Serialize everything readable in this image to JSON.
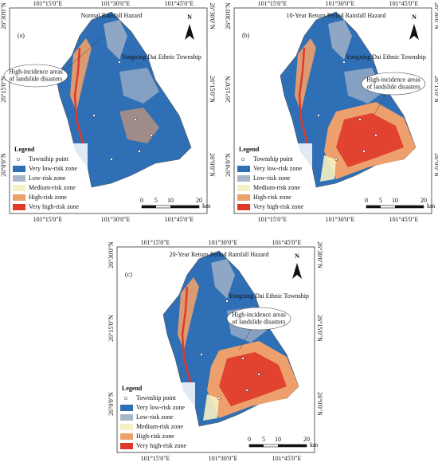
{
  "north": "N",
  "coords": {
    "lon": [
      "101°15'0\"E",
      "101°30'0\"E",
      "101°45'0\"E"
    ],
    "lat": [
      "26°30'0\"N",
      "26°15'0\"N",
      "26°0'0\"N"
    ]
  },
  "legend": {
    "title": "Legend",
    "items": [
      {
        "label": "Township point",
        "color": "#ffffff"
      },
      {
        "label": "Very low-risk zone",
        "color": "#2f6fb5"
      },
      {
        "label": "Low-risk zone",
        "color": "#a8b5c9"
      },
      {
        "label": "Medium-risk zone",
        "color": "#f6f0c2"
      },
      {
        "label": "High-risk zone",
        "color": "#eda06c"
      },
      {
        "label": "Very high-risk zone",
        "color": "#e0392a"
      }
    ]
  },
  "scale": {
    "ticks": [
      "0",
      "5",
      "10",
      "20"
    ],
    "unit": "km"
  },
  "panels": [
    {
      "label": "(a)",
      "title": "Normal Rainfall Hazard",
      "annotation": [
        "High-incidence areas",
        "of landslide disasters"
      ],
      "township": "Yongxing Dai Ethnic Township"
    },
    {
      "label": "(b)",
      "title": "10-Year Return Period Rainfall Hazard",
      "annotation": [
        "High-incidence areas",
        "of landslide disasters"
      ],
      "township": "Yongxing Dai Ethnic Township"
    },
    {
      "label": "(c)",
      "title": "20-Year Return Period Rainfall Hazard",
      "annotation": [
        "High-incidence areas",
        "of landslide disasters"
      ],
      "township": "Yongxing Dai Ethnic Township"
    }
  ]
}
